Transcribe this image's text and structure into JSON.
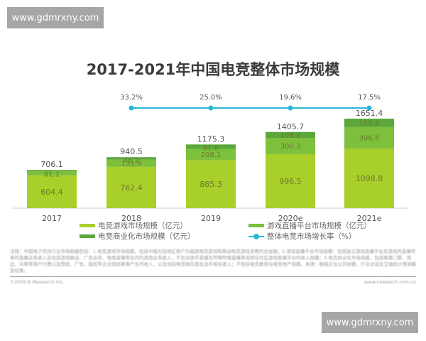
{
  "watermark": {
    "top": "www.gdmrxny.com",
    "bottom": "www.gdmrxny.com"
  },
  "title": "2017-2021年中国电竞整体市场规模",
  "colors": {
    "game_market": "#a9cf2b",
    "live_platform": "#7cc03c",
    "commercialization": "#5aa83c",
    "growth_line": "#29b6d8",
    "axis": "#cccccc",
    "label": "#555555"
  },
  "legend": {
    "game_market": "电竞游戏市场规模（亿元）",
    "live_platform": "游戏直播平台市场规模（亿元）",
    "commercialization": "电竞商业化市场规模（亿元）",
    "growth_rate": "整体电竞市场增长率（%）"
  },
  "note": "注释：中国电子竞技行业市场规模包括：1.电竞游戏市场规模，包括中国大陆地区用户为端游电竞游戏和移动电竞游戏消费的总金额；2.游戏直播平台市场规模：包括独立游戏直播平台及游戏内直播带来的直播业务收入及包括游戏联运、广告业务、电商直播等在内的其他业务收入，不包含快手直播及哔哩哔哩直播等视频化社区游戏直播平台的收入规模；3.电竞商业化市场规模，包括赛事门票、周边、众筹等用户付费以及赞助、广告、版权等企业围绕赛事产生的收入，以及包括电竞俱乐部及选手相关收入；不包括电竞教育与电竞地产规模。来源：根据企业公开财报、行业访谈及艾瑞统计预测模型估算。",
  "footer": {
    "left": "©2020.8 iResearch Inc.",
    "right": "www.iresearch.com.cn"
  },
  "chart_data": {
    "type": "bar",
    "stacked": true,
    "title": "2017-2021年中国电竞整体市场规模",
    "categories": [
      "2017",
      "2018",
      "2019",
      "2020e",
      "2021e"
    ],
    "series": [
      {
        "name": "电竞游戏市场规模（亿元）",
        "type": "bar",
        "values": [
          604.4,
          762.4,
          885.3,
          996.5,
          1098.8
        ]
      },
      {
        "name": "游戏直播平台市场规模（亿元）",
        "type": "bar",
        "values": [
          81.1,
          131.9,
          208.1,
          300.3,
          396.8
        ]
      },
      {
        "name": "电竞商业化市场规模（亿元）",
        "type": "bar",
        "values": [
          20.6,
          46.2,
          81.8,
          108.8,
          155.8
        ]
      },
      {
        "name": "整体电竞市场增长率（%）",
        "type": "line",
        "values": [
          null,
          33.2,
          25.0,
          19.6,
          17.5
        ]
      }
    ],
    "totals": [
      706.1,
      940.5,
      1175.3,
      1405.7,
      1651.4
    ],
    "segment_labels_shown": {
      "2017": [
        "604.4",
        "81.1"
      ],
      "2018": [
        "762.4",
        "131.9",
        "46.2"
      ],
      "2019": [
        "885.3",
        "208.1",
        "81.8"
      ],
      "2020e": [
        "996.5",
        "300.3",
        "108.8"
      ],
      "2021e": [
        "1098.8",
        "396.8",
        "155.8"
      ]
    },
    "growth_labels": [
      "",
      "33.2%",
      "25.0%",
      "19.6%",
      "17.5%"
    ],
    "xlabel": "",
    "ylabel": "",
    "grid": false,
    "legend_position": "bottom"
  }
}
